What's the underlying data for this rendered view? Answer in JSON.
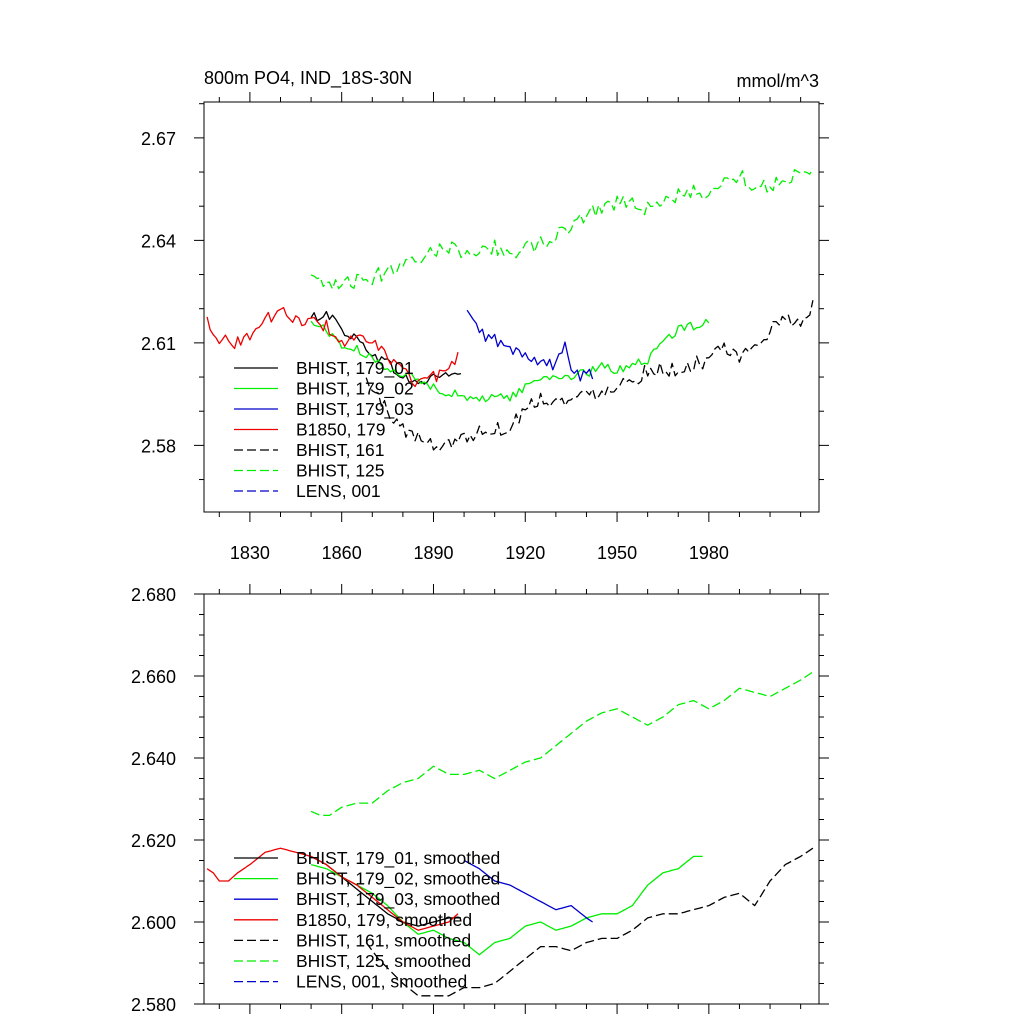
{
  "chart_data": [
    {
      "type": "line",
      "title_left": "800m PO4, IND_18S-30N",
      "title_right": "mmol/m^3",
      "xlabel": "",
      "ylabel": "",
      "xlim": [
        1815,
        2016
      ],
      "ylim": [
        2.5605,
        2.6805
      ],
      "x_ticks": [
        1830,
        1860,
        1890,
        1920,
        1950,
        1980
      ],
      "x_tick_labels": [
        "1830",
        "1860",
        "1890",
        "1920",
        "1950",
        "1980"
      ],
      "y_ticks": [
        2.58,
        2.61,
        2.64,
        2.67
      ],
      "y_tick_labels": [
        "2.58",
        "2.61",
        "2.64",
        "2.67"
      ],
      "grid": false,
      "legend_position": "bottom-left",
      "series": [
        {
          "name": "BHIST, 179_01",
          "color": "#000000",
          "dash": "solid",
          "noise": 0.0015,
          "x": [
            1850,
            1855,
            1860,
            1865,
            1870,
            1875,
            1880,
            1885,
            1890,
            1895,
            1899
          ],
          "values": [
            2.617,
            2.619,
            2.614,
            2.611,
            2.607,
            2.604,
            2.6,
            2.598,
            2.6,
            2.601,
            2.601
          ]
        },
        {
          "name": "BHIST, 179_02",
          "color": "#00ee00",
          "dash": "solid",
          "noise": 0.0013,
          "x": [
            1850,
            1855,
            1860,
            1865,
            1870,
            1880,
            1890,
            1900,
            1905,
            1910,
            1915,
            1920,
            1925,
            1930,
            1940,
            1945,
            1950,
            1955,
            1960,
            1965,
            1970,
            1975,
            1980
          ],
          "values": [
            2.616,
            2.614,
            2.609,
            2.608,
            2.605,
            2.601,
            2.597,
            2.594,
            2.593,
            2.595,
            2.594,
            2.597,
            2.6,
            2.6,
            2.601,
            2.603,
            2.602,
            2.604,
            2.605,
            2.61,
            2.614,
            2.615,
            2.617
          ]
        },
        {
          "name": "BHIST, 179_03",
          "color": "#0000cc",
          "dash": "solid",
          "noise": 0.0018,
          "x": [
            1901,
            1905,
            1910,
            1915,
            1920,
            1925,
            1930,
            1933,
            1936,
            1940,
            1942
          ],
          "values": [
            2.619,
            2.613,
            2.611,
            2.608,
            2.606,
            2.605,
            2.603,
            2.61,
            2.6,
            2.601,
            2.6
          ]
        },
        {
          "name": "B1850, 179",
          "color": "#ee0000",
          "dash": "solid",
          "noise": 0.0018,
          "x": [
            1816,
            1820,
            1825,
            1830,
            1835,
            1840,
            1845,
            1850,
            1855,
            1860,
            1865,
            1870,
            1875,
            1880,
            1885,
            1890,
            1895,
            1898
          ],
          "values": [
            2.617,
            2.611,
            2.61,
            2.612,
            2.617,
            2.619,
            2.617,
            2.616,
            2.615,
            2.61,
            2.611,
            2.61,
            2.606,
            2.602,
            2.598,
            2.6,
            2.601,
            2.607
          ]
        },
        {
          "name": "BHIST, 161",
          "color": "#000000",
          "dash": "dashed",
          "noise": 0.0022,
          "x": [
            1868,
            1875,
            1880,
            1885,
            1890,
            1895,
            1900,
            1905,
            1910,
            1915,
            1920,
            1925,
            1930,
            1935,
            1940,
            1945,
            1950,
            1955,
            1960,
            1965,
            1970,
            1975,
            1980,
            1985,
            1990,
            1995,
            2000,
            2005,
            2010,
            2014
          ],
          "values": [
            2.599,
            2.59,
            2.585,
            2.582,
            2.58,
            2.581,
            2.582,
            2.584,
            2.585,
            2.585,
            2.591,
            2.594,
            2.593,
            2.593,
            2.595,
            2.596,
            2.598,
            2.599,
            2.602,
            2.603,
            2.601,
            2.604,
            2.605,
            2.608,
            2.605,
            2.609,
            2.614,
            2.616,
            2.617,
            2.621
          ]
        },
        {
          "name": "BHIST, 125",
          "color": "#00ee00",
          "dash": "dashed",
          "noise": 0.0022,
          "x": [
            1850,
            1855,
            1860,
            1865,
            1870,
            1875,
            1880,
            1885,
            1890,
            1895,
            1900,
            1905,
            1910,
            1915,
            1920,
            1925,
            1930,
            1935,
            1940,
            1945,
            1950,
            1955,
            1960,
            1965,
            1970,
            1975,
            1980,
            1985,
            1990,
            1995,
            2000,
            2005,
            2010,
            2014
          ],
          "values": [
            2.629,
            2.626,
            2.627,
            2.628,
            2.629,
            2.631,
            2.634,
            2.635,
            2.637,
            2.638,
            2.637,
            2.637,
            2.638,
            2.636,
            2.638,
            2.639,
            2.641,
            2.644,
            2.648,
            2.65,
            2.651,
            2.652,
            2.649,
            2.651,
            2.653,
            2.654,
            2.654,
            2.657,
            2.659,
            2.656,
            2.656,
            2.658,
            2.66,
            2.662
          ]
        },
        {
          "name": "LENS, 001",
          "color": "#0000cc",
          "dash": "dashed",
          "noise": 0,
          "x": [],
          "values": []
        }
      ]
    },
    {
      "type": "line",
      "title_left": "",
      "title_right": "",
      "xlabel": "",
      "ylabel": "",
      "xlim": [
        1815,
        2016
      ],
      "ylim": [
        2.58,
        2.68
      ],
      "x_ticks": [
        1830,
        1860,
        1890,
        1920,
        1950,
        1980
      ],
      "x_tick_labels": [],
      "y_ticks": [
        2.58,
        2.6,
        2.62,
        2.64,
        2.66,
        2.68
      ],
      "y_tick_labels": [
        "2.580",
        "2.600",
        "2.620",
        "2.640",
        "2.660",
        "2.680"
      ],
      "grid": false,
      "legend_position": "bottom-left",
      "series": [
        {
          "name": "BHIST, 179_01, smoothed",
          "color": "#000000",
          "dash": "solid",
          "noise": 0,
          "x": [
            1850,
            1855,
            1860,
            1865,
            1870,
            1875,
            1880,
            1885,
            1890,
            1895,
            1899
          ],
          "values": [
            2.616,
            2.614,
            2.611,
            2.608,
            2.605,
            2.602,
            2.6,
            2.599,
            2.6,
            2.601,
            2.601
          ]
        },
        {
          "name": "BHIST, 179_02, smoothed",
          "color": "#00ee00",
          "dash": "solid",
          "noise": 0,
          "x": [
            1850,
            1855,
            1860,
            1865,
            1870,
            1875,
            1880,
            1885,
            1890,
            1895,
            1900,
            1905,
            1910,
            1915,
            1920,
            1925,
            1930,
            1935,
            1940,
            1945,
            1950,
            1955,
            1960,
            1965,
            1970,
            1975,
            1978
          ],
          "values": [
            2.614,
            2.613,
            2.611,
            2.609,
            2.607,
            2.604,
            2.6,
            2.597,
            2.598,
            2.596,
            2.595,
            2.592,
            2.595,
            2.596,
            2.599,
            2.6,
            2.598,
            2.599,
            2.601,
            2.602,
            2.602,
            2.604,
            2.609,
            2.612,
            2.613,
            2.616,
            2.616
          ]
        },
        {
          "name": "BHIST, 179_03, smoothed",
          "color": "#0000cc",
          "dash": "solid",
          "noise": 0,
          "x": [
            1900,
            1905,
            1910,
            1915,
            1920,
            1925,
            1930,
            1935,
            1940,
            1942
          ],
          "values": [
            2.615,
            2.613,
            2.61,
            2.609,
            2.607,
            2.605,
            2.603,
            2.604,
            2.601,
            2.6
          ]
        },
        {
          "name": "B1850, 179, smoothed",
          "color": "#ee0000",
          "dash": "solid",
          "noise": 0,
          "x": [
            1816,
            1818,
            1820,
            1823,
            1826,
            1830,
            1835,
            1840,
            1845,
            1850,
            1855,
            1860,
            1865,
            1870,
            1875,
            1880,
            1885,
            1890,
            1895,
            1898
          ],
          "values": [
            2.613,
            2.612,
            2.61,
            2.61,
            2.612,
            2.614,
            2.617,
            2.618,
            2.617,
            2.616,
            2.614,
            2.611,
            2.609,
            2.606,
            2.603,
            2.6,
            2.598,
            2.599,
            2.6,
            2.602
          ]
        },
        {
          "name": "BHIST, 161, smoothed",
          "color": "#000000",
          "dash": "dashed",
          "noise": 0,
          "x": [
            1868,
            1872,
            1876,
            1880,
            1885,
            1890,
            1895,
            1900,
            1905,
            1910,
            1915,
            1920,
            1925,
            1930,
            1935,
            1940,
            1945,
            1950,
            1955,
            1960,
            1965,
            1970,
            1975,
            1980,
            1985,
            1990,
            1995,
            2000,
            2005,
            2010,
            2014
          ],
          "values": [
            2.595,
            2.591,
            2.588,
            2.585,
            2.582,
            2.582,
            2.582,
            2.584,
            2.584,
            2.585,
            2.588,
            2.591,
            2.594,
            2.594,
            2.593,
            2.595,
            2.596,
            2.596,
            2.598,
            2.601,
            2.602,
            2.602,
            2.603,
            2.604,
            2.606,
            2.607,
            2.604,
            2.61,
            2.614,
            2.616,
            2.618
          ]
        },
        {
          "name": "BHIST, 125, smoothed",
          "color": "#00ee00",
          "dash": "dashed",
          "noise": 0,
          "x": [
            1850,
            1853,
            1856,
            1860,
            1865,
            1870,
            1875,
            1880,
            1885,
            1890,
            1895,
            1900,
            1905,
            1910,
            1915,
            1920,
            1925,
            1930,
            1935,
            1940,
            1945,
            1950,
            1955,
            1960,
            1965,
            1970,
            1975,
            1980,
            1985,
            1990,
            1995,
            2000,
            2005,
            2010,
            2014
          ],
          "values": [
            2.627,
            2.626,
            2.626,
            2.628,
            2.629,
            2.629,
            2.632,
            2.634,
            2.635,
            2.638,
            2.636,
            2.636,
            2.637,
            2.635,
            2.637,
            2.639,
            2.64,
            2.643,
            2.646,
            2.649,
            2.651,
            2.652,
            2.65,
            2.648,
            2.65,
            2.653,
            2.654,
            2.652,
            2.654,
            2.657,
            2.656,
            2.655,
            2.657,
            2.659,
            2.661
          ]
        },
        {
          "name": "LENS, 001, smoothed",
          "color": "#0000cc",
          "dash": "dashed",
          "noise": 0,
          "x": [],
          "values": []
        }
      ]
    }
  ]
}
